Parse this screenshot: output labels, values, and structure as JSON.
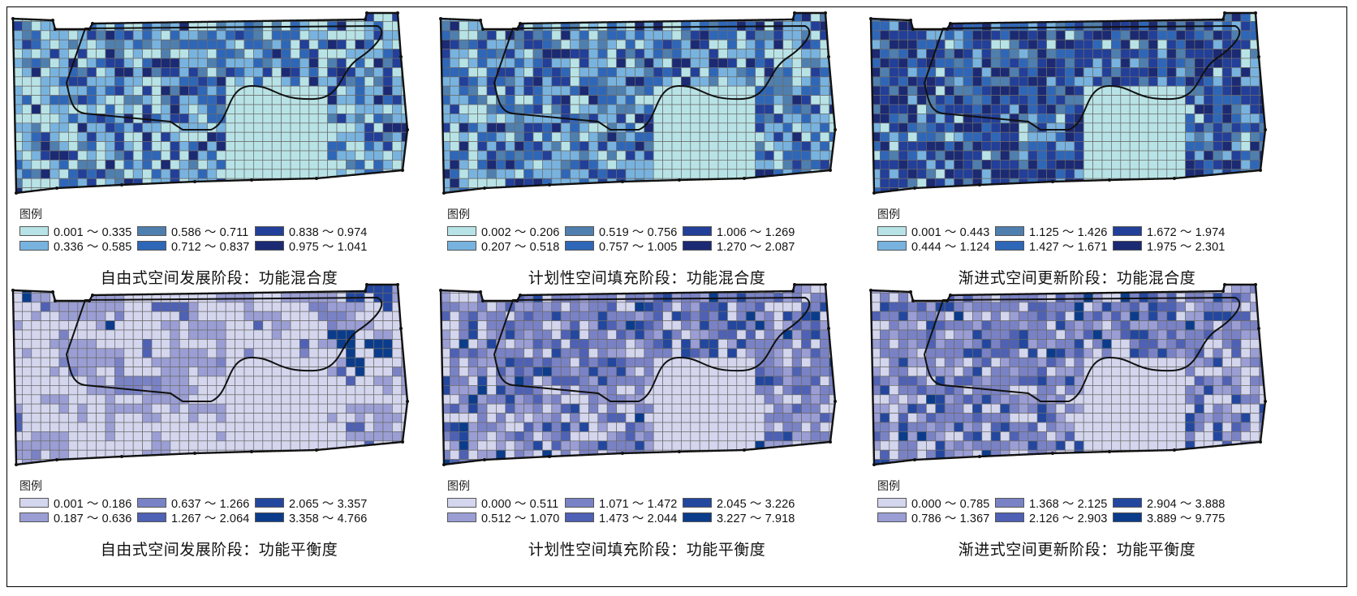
{
  "panels": [
    {
      "title": "自由式空间发展阶段：功能混合度",
      "legend_title": "图例",
      "palette": "mix",
      "colors": [
        "#b8e3e6",
        "#78b3df",
        "#4f7fae",
        "#2f67b8",
        "#223f99",
        "#1b2a73"
      ],
      "classes": [
        "0.001 ～ 0.335",
        "0.336 ～ 0.585",
        "0.586 ～ 0.711",
        "0.712 ～ 0.837",
        "0.838 ～ 0.974",
        "0.975 ～ 1.041"
      ],
      "pattern": {
        "weights": [
          0.22,
          0.26,
          0.12,
          0.18,
          0.14,
          0.08
        ],
        "core_class": 0,
        "lower_bias": 0.55,
        "seed": 11
      }
    },
    {
      "title": "计划性空间填充阶段：功能混合度",
      "legend_title": "图例",
      "palette": "mix",
      "colors": [
        "#b8e3e6",
        "#78b3df",
        "#4f7fae",
        "#2f67b8",
        "#223f99",
        "#1b2a73"
      ],
      "classes": [
        "0.002 ～ 0.206",
        "0.207 ～ 0.518",
        "0.519 ～ 0.756",
        "0.757 ～ 1.005",
        "1.006 ～ 1.269",
        "1.270 ～ 2.087"
      ],
      "pattern": {
        "weights": [
          0.12,
          0.3,
          0.14,
          0.2,
          0.14,
          0.1
        ],
        "core_class": 0,
        "lower_bias": 0.2,
        "seed": 23
      }
    },
    {
      "title": "渐进式空间更新阶段：功能混合度",
      "legend_title": "图例",
      "palette": "mix",
      "colors": [
        "#b8e3e6",
        "#78b3df",
        "#4f7fae",
        "#2f67b8",
        "#223f99",
        "#1b2a73"
      ],
      "classes": [
        "0.001 ～ 0.443",
        "0.444 ～ 1.124",
        "1.125 ～ 1.426",
        "1.427 ～ 1.671",
        "1.672 ～ 1.974",
        "1.975 ～ 2.301"
      ],
      "pattern": {
        "weights": [
          0.05,
          0.1,
          0.14,
          0.22,
          0.27,
          0.22
        ],
        "core_class": 0,
        "lower_bias": 0.0,
        "seed": 37
      }
    },
    {
      "title": "自由式空间发展阶段：功能平衡度",
      "legend_title": "图例",
      "palette": "bal",
      "colors": [
        "#d4d6ee",
        "#9a9ed4",
        "#7a82c6",
        "#4e61b4",
        "#23479f",
        "#0b3c8c"
      ],
      "classes": [
        "0.001 ～ 0.186",
        "0.187 ～ 0.636",
        "0.637 ～ 1.266",
        "1.267 ～ 2.064",
        "2.065 ～ 3.357",
        "3.358 ～ 4.766"
      ],
      "pattern": {
        "weights": [
          0.55,
          0.28,
          0.1,
          0.04,
          0.02,
          0.01
        ],
        "core_class": 0,
        "lower_bias": 0.9,
        "seed": 41,
        "smooth": true
      }
    },
    {
      "title": "计划性空间填充阶段：功能平衡度",
      "legend_title": "图例",
      "palette": "bal",
      "colors": [
        "#d4d6ee",
        "#9a9ed4",
        "#7a82c6",
        "#4e61b4",
        "#23479f",
        "#0b3c8c"
      ],
      "classes": [
        "0.000 ～ 0.511",
        "0.512 ～ 1.070",
        "1.071 ～ 1.472",
        "1.473 ～ 2.044",
        "2.045 ～ 3.226",
        "3.227 ～ 7.918"
      ],
      "pattern": {
        "weights": [
          0.14,
          0.16,
          0.4,
          0.16,
          0.1,
          0.04
        ],
        "core_class": 0,
        "lower_bias": 0.3,
        "seed": 53
      }
    },
    {
      "title": "渐进式空间更新阶段：功能平衡度",
      "legend_title": "图例",
      "palette": "bal",
      "colors": [
        "#d4d6ee",
        "#9a9ed4",
        "#7a82c6",
        "#4e61b4",
        "#23479f",
        "#0b3c8c"
      ],
      "classes": [
        "0.000 ～ 0.785",
        "0.786 ～ 1.367",
        "1.368 ～ 2.125",
        "2.126 ～ 2.903",
        "2.904 ～ 3.888",
        "3.889 ～ 9.775"
      ],
      "pattern": {
        "weights": [
          0.14,
          0.16,
          0.42,
          0.16,
          0.09,
          0.03
        ],
        "core_class": 0,
        "lower_bias": 0.35,
        "seed": 67
      }
    }
  ]
}
